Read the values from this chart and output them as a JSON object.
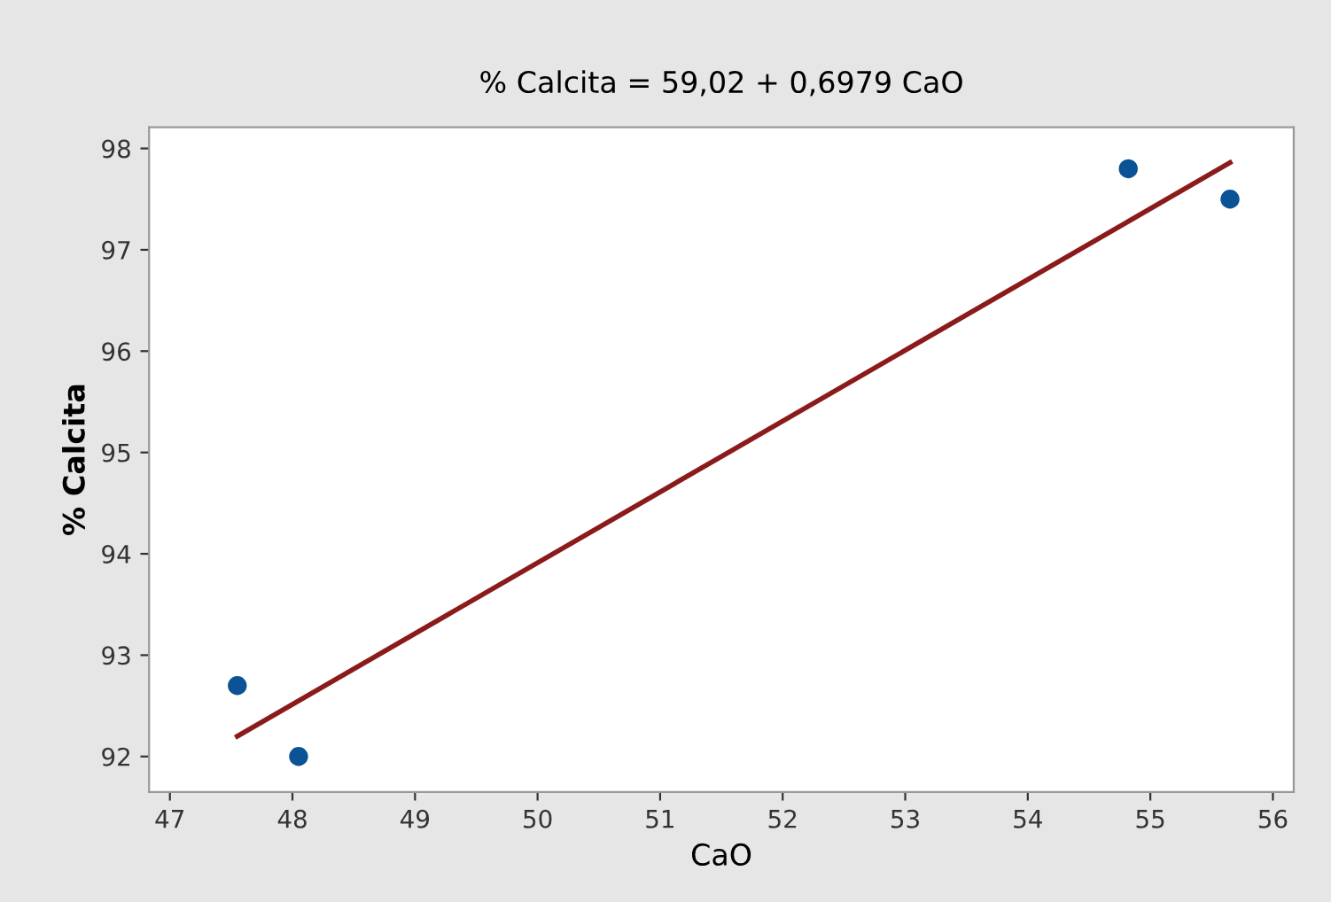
{
  "chart_data": {
    "type": "scatter",
    "title": "% Calcita = 59,02 + 0,6979 CaO",
    "xlabel": "CaO",
    "ylabel": "% Calcita",
    "xlim": [
      46.83,
      56.17
    ],
    "ylim": [
      91.65,
      98.21
    ],
    "xticks": [
      47,
      48,
      49,
      50,
      51,
      52,
      53,
      54,
      55,
      56
    ],
    "yticks": [
      92,
      93,
      94,
      95,
      96,
      97,
      98
    ],
    "grid": false,
    "legend": false,
    "marker": "circle",
    "series": [
      {
        "color": "#0b5394",
        "x": [
          47.55,
          48.05,
          54.82,
          55.65
        ],
        "values": [
          92.7,
          92.0,
          97.8,
          97.5
        ]
      },
      {
        "type": "line",
        "color": "#8b1a1a",
        "line_style": "solid",
        "marker": "none",
        "x": [
          47.55,
          55.65
        ],
        "values": [
          92.2,
          97.86
        ]
      }
    ]
  }
}
